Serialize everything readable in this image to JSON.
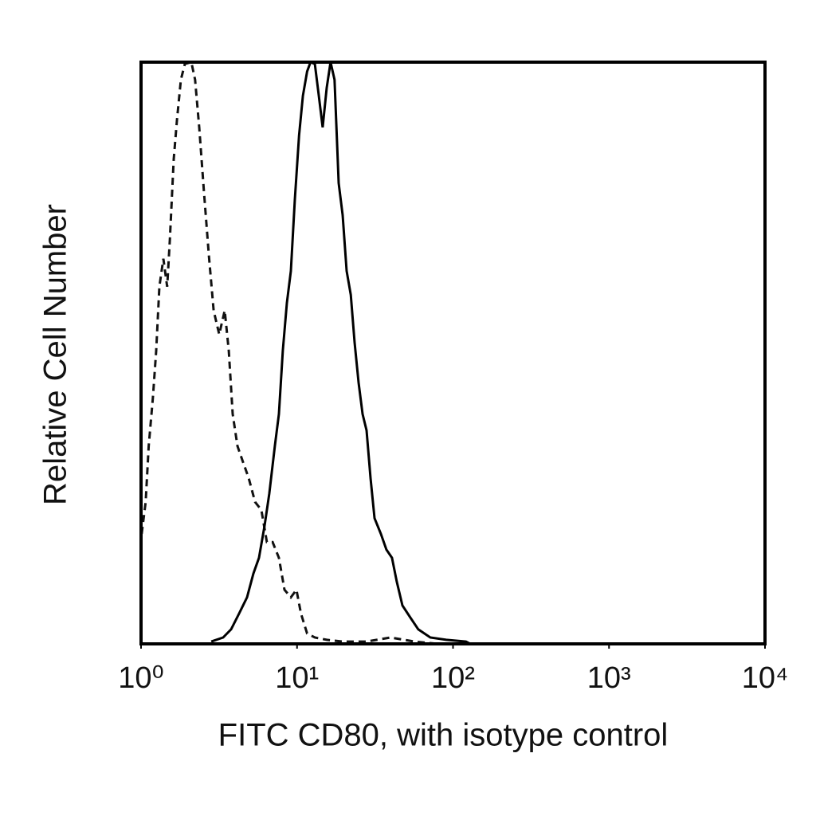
{
  "chart_data": {
    "type": "line",
    "xlabel": "FITC CD80, with isotype control",
    "ylabel": "Relative Cell Number",
    "xscale": "log",
    "xlim": [
      1,
      10000
    ],
    "xticks": [
      {
        "value": 1,
        "label": "10⁰"
      },
      {
        "value": 10,
        "label": "10¹"
      },
      {
        "value": 100,
        "label": "10²"
      },
      {
        "value": 1000,
        "label": "10³"
      },
      {
        "value": 10000,
        "label": "10⁴"
      }
    ],
    "ylim": [
      0,
      100
    ],
    "series": [
      {
        "color": "#111111",
        "dash": true,
        "x": [
          1.01,
          1.07,
          1.12,
          1.19,
          1.25,
          1.31,
          1.39,
          1.47,
          1.53,
          1.62,
          1.7,
          1.8,
          1.91,
          2.1,
          2.22,
          2.36,
          2.53,
          2.72,
          2.92,
          3.17,
          3.44,
          3.65,
          3.87,
          4.15,
          4.51,
          4.9,
          5.38,
          5.91,
          6.41,
          6.97,
          7.65,
          8.31,
          9.13,
          9.91,
          10.6,
          11.6,
          13.0,
          15.5,
          19.6,
          27.9,
          39.7,
          56.5,
          80.5
        ],
        "values": [
          18.9,
          24.4,
          34.0,
          42.2,
          50.4,
          61.4,
          66.2,
          61.4,
          69.6,
          83.3,
          90.1,
          97.0,
          99.7,
          100,
          97.0,
          88.8,
          77.8,
          66.8,
          57.3,
          53.2,
          57.3,
          50.4,
          39.5,
          34.0,
          31.2,
          28.5,
          24.4,
          23.0,
          17.5,
          17.5,
          14.8,
          9.3,
          8.0,
          9.3,
          5.2,
          1.8,
          1.1,
          0.7,
          0.4,
          0.4,
          1.1,
          0.4,
          0
        ]
      },
      {
        "color": "#000000",
        "dash": false,
        "x": [
          2.82,
          3.36,
          3.78,
          4.25,
          4.78,
          5.25,
          5.7,
          6.19,
          6.64,
          7.21,
          7.65,
          8.11,
          8.61,
          9.13,
          9.68,
          10.3,
          10.9,
          11.6,
          12.2,
          13.0,
          13.8,
          14.6,
          15.5,
          16.4,
          17.4,
          18.5,
          19.6,
          20.8,
          22.1,
          23.4,
          24.8,
          26.3,
          27.9,
          29.6,
          31.4,
          34.5,
          37.4,
          40.6,
          43.6,
          47.4,
          53.3,
          59.9,
          71.5,
          90.5,
          121,
          129
        ],
        "values": [
          0.4,
          1.1,
          2.5,
          5.2,
          8.0,
          12.1,
          14.8,
          20.3,
          25.8,
          34.0,
          39.5,
          50.4,
          58.6,
          64.1,
          76.4,
          87.4,
          94.2,
          98.4,
          100,
          99.7,
          94.2,
          88.8,
          95.6,
          100,
          97.0,
          79.2,
          73.7,
          64.1,
          60.0,
          51.8,
          44.9,
          39.5,
          36.7,
          28.5,
          21.6,
          18.9,
          16.2,
          14.8,
          10.7,
          6.6,
          4.5,
          2.5,
          1.1,
          0.7,
          0.4,
          0
        ]
      }
    ]
  }
}
